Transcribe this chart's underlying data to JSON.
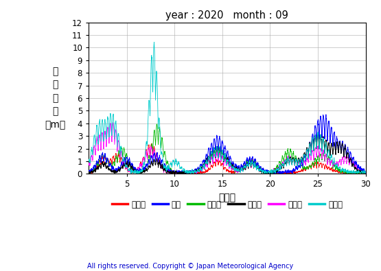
{
  "title": "year : 2020   month : 09",
  "ylabel_lines": [
    "有",
    "義",
    "波",
    "高",
    "（m）"
  ],
  "xlabel": "（日）",
  "xlim": [
    1,
    30
  ],
  "ylim": [
    0,
    12
  ],
  "yticks": [
    0,
    1,
    2,
    3,
    4,
    5,
    6,
    7,
    8,
    9,
    10,
    11,
    12
  ],
  "xticks": [
    5,
    10,
    15,
    20,
    25,
    30
  ],
  "copyright": "All rights reserved. Copyright © Japan Meteorological Agency",
  "series_names": [
    "上ノ国",
    "唐桑",
    "石廐崎",
    "経ヶ岸",
    "生月島",
    "屋久島"
  ],
  "series_colors": [
    "#ff0000",
    "#0000ff",
    "#00bb00",
    "#000000",
    "#ff00ff",
    "#00cccc"
  ],
  "figsize": [
    5.55,
    3.95
  ],
  "dpi": 100
}
